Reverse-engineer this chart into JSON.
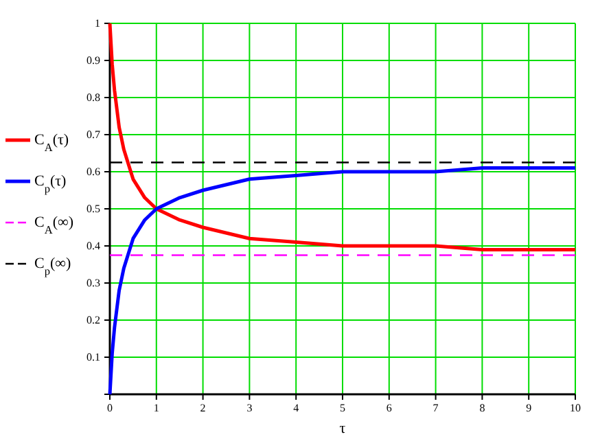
{
  "chart_data": {
    "type": "line",
    "xlabel": "τ",
    "x": [
      0,
      0.05,
      0.1,
      0.2,
      0.3,
      0.5,
      0.75,
      1,
      1.5,
      2,
      3,
      4,
      5,
      6,
      7,
      8,
      9,
      10
    ],
    "series": [
      {
        "name": "C$_{A}$(τ)",
        "color": "#ff0000",
        "values": [
          1,
          0.89,
          0.82,
          0.72,
          0.66,
          0.58,
          0.53,
          0.5,
          0.47,
          0.45,
          0.42,
          0.41,
          0.4,
          0.4,
          0.4,
          0.39,
          0.39,
          0.39
        ]
      },
      {
        "name": "C$_{p}$(τ)",
        "color": "#0000ff",
        "values": [
          0,
          0.11,
          0.18,
          0.28,
          0.34,
          0.42,
          0.47,
          0.5,
          0.53,
          0.55,
          0.58,
          0.59,
          0.6,
          0.6,
          0.6,
          0.61,
          0.61,
          0.61
        ]
      }
    ],
    "ref_lines": [
      {
        "axis": "y",
        "value": 0.375,
        "label": "C$_{A}$(∞)",
        "color": "#ff00ff",
        "line_style": "dashed"
      },
      {
        "axis": "y",
        "value": 0.625,
        "label": "C$_{p}$(∞)",
        "color": "#000000",
        "line_style": "dashed"
      }
    ],
    "xlim": [
      0,
      10
    ],
    "ylim": [
      0,
      1
    ],
    "xticks": [
      0,
      1,
      2,
      3,
      4,
      5,
      6,
      7,
      8,
      9,
      10
    ],
    "yticks": [
      {
        "value": 0,
        "label": null
      },
      0.1,
      0.2,
      0.3,
      0.4,
      0.5,
      0.6,
      0.7,
      0.8,
      0.9,
      1
    ],
    "grid": true,
    "legend": "left",
    "line_style": "solid",
    "marker": "none"
  }
}
